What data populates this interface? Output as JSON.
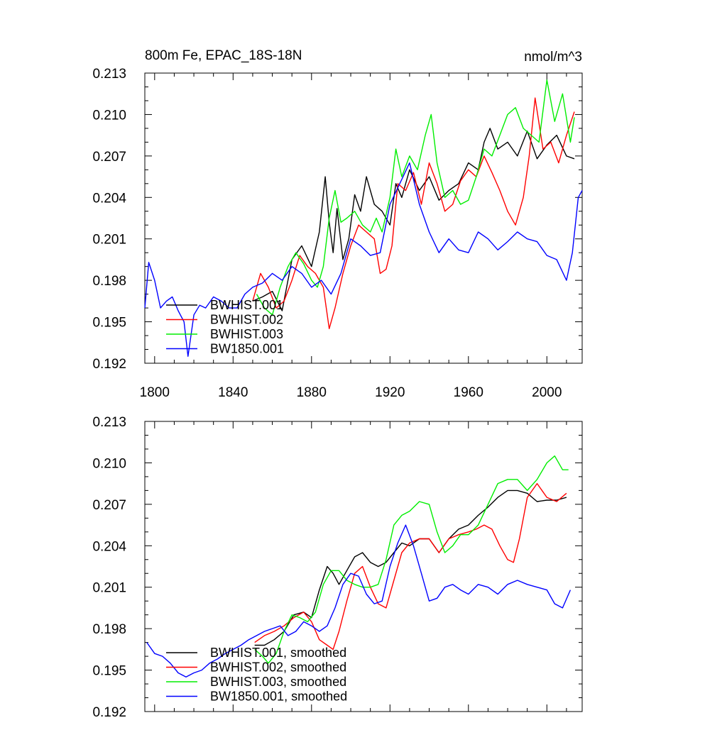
{
  "chart_data": [
    {
      "type": "line",
      "title": "800m Fe, EPAC_18S-18N",
      "units": "nmol/m^3",
      "xlim": [
        1795,
        2018
      ],
      "ylim": [
        0.192,
        0.213
      ],
      "x_ticks": [
        1800,
        1840,
        1880,
        1920,
        1960,
        2000
      ],
      "x_tick_labels": [
        "1800",
        "1840",
        "1880",
        "1920",
        "1960",
        "2000"
      ],
      "y_ticks": [
        0.192,
        0.195,
        0.198,
        0.201,
        0.204,
        0.207,
        0.21,
        0.213
      ],
      "y_tick_labels": [
        "0.192",
        "0.195",
        "0.198",
        "0.201",
        "0.204",
        "0.207",
        "0.210",
        "0.213"
      ],
      "legend_position": "bottom-left",
      "series": [
        {
          "name": "BWHIST.001",
          "color": "#000000",
          "x": [
            1850,
            1855,
            1860,
            1865,
            1870,
            1875,
            1880,
            1884,
            1887,
            1889,
            1891,
            1893,
            1896,
            1899,
            1902,
            1905,
            1908,
            1912,
            1916,
            1920,
            1923,
            1926,
            1930,
            1935,
            1940,
            1945,
            1950,
            1955,
            1960,
            1965,
            1968,
            1971,
            1975,
            1980,
            1985,
            1990,
            1995,
            2000,
            2005,
            2010,
            2014
          ],
          "values": [
            0.1965,
            0.1968,
            0.1972,
            0.1958,
            0.1995,
            0.2005,
            0.199,
            0.2015,
            0.2055,
            0.2022,
            0.2,
            0.2032,
            0.1995,
            0.201,
            0.2042,
            0.203,
            0.2055,
            0.2035,
            0.203,
            0.202,
            0.205,
            0.204,
            0.206,
            0.2045,
            0.2055,
            0.2038,
            0.2045,
            0.205,
            0.2065,
            0.206,
            0.208,
            0.209,
            0.2075,
            0.208,
            0.207,
            0.2088,
            0.2068,
            0.2078,
            0.2085,
            0.207,
            0.2068
          ]
        },
        {
          "name": "BWHIST.002",
          "color": "#ff0000",
          "x": [
            1850,
            1854,
            1858,
            1862,
            1866,
            1870,
            1874,
            1878,
            1882,
            1886,
            1889,
            1892,
            1896,
            1900,
            1904,
            1908,
            1912,
            1915,
            1918,
            1921,
            1924,
            1928,
            1932,
            1936,
            1940,
            1944,
            1948,
            1952,
            1956,
            1960,
            1964,
            1968,
            1972,
            1976,
            1980,
            1984,
            1988,
            1991,
            1994,
            1998,
            2002,
            2006,
            2010,
            2014
          ],
          "values": [
            0.1965,
            0.1985,
            0.1975,
            0.196,
            0.1965,
            0.198,
            0.1998,
            0.199,
            0.1985,
            0.1975,
            0.1945,
            0.196,
            0.1985,
            0.2005,
            0.202,
            0.2015,
            0.201,
            0.1985,
            0.1988,
            0.2005,
            0.205,
            0.2045,
            0.2058,
            0.2035,
            0.2065,
            0.205,
            0.203,
            0.2035,
            0.2052,
            0.206,
            0.2055,
            0.207,
            0.2058,
            0.2045,
            0.203,
            0.202,
            0.204,
            0.207,
            0.2112,
            0.2075,
            0.208,
            0.2065,
            0.2085,
            0.2102
          ]
        },
        {
          "name": "BWHIST.003",
          "color": "#00ee00",
          "x": [
            1852,
            1856,
            1860,
            1864,
            1868,
            1872,
            1876,
            1880,
            1883,
            1886,
            1889,
            1892,
            1895,
            1898,
            1902,
            1906,
            1910,
            1913,
            1916,
            1920,
            1923,
            1926,
            1930,
            1934,
            1938,
            1941,
            1944,
            1948,
            1952,
            1956,
            1960,
            1964,
            1968,
            1972,
            1976,
            1980,
            1984,
            1988,
            1992,
            1996,
            2000,
            2004,
            2008,
            2012,
            2014
          ],
          "values": [
            0.197,
            0.196,
            0.1955,
            0.1975,
            0.199,
            0.2,
            0.1992,
            0.198,
            0.1975,
            0.199,
            0.2025,
            0.2045,
            0.2022,
            0.2025,
            0.203,
            0.202,
            0.2015,
            0.2025,
            0.2015,
            0.204,
            0.2075,
            0.2055,
            0.207,
            0.206,
            0.2085,
            0.21,
            0.2065,
            0.204,
            0.2045,
            0.2035,
            0.2038,
            0.2055,
            0.2075,
            0.207,
            0.2085,
            0.21,
            0.2105,
            0.209,
            0.2085,
            0.208,
            0.2125,
            0.2095,
            0.2115,
            0.208,
            0.2098
          ]
        },
        {
          "name": "BW1850.001",
          "color": "#0000ff",
          "x": [
            1795,
            1797,
            1800,
            1803,
            1806,
            1809,
            1812,
            1815,
            1817,
            1820,
            1823,
            1826,
            1830,
            1834,
            1838,
            1842,
            1846,
            1850,
            1855,
            1860,
            1865,
            1870,
            1875,
            1880,
            1885,
            1890,
            1895,
            1900,
            1905,
            1910,
            1915,
            1920,
            1925,
            1930,
            1935,
            1940,
            1945,
            1950,
            1955,
            1960,
            1965,
            1970,
            1975,
            1980,
            1985,
            1990,
            1995,
            2000,
            2005,
            2010,
            2013,
            2016,
            2018
          ],
          "values": [
            0.196,
            0.1993,
            0.198,
            0.196,
            0.1965,
            0.1968,
            0.1958,
            0.195,
            0.1925,
            0.1955,
            0.1962,
            0.196,
            0.1968,
            0.1965,
            0.196,
            0.196,
            0.197,
            0.1975,
            0.1978,
            0.1985,
            0.198,
            0.199,
            0.1985,
            0.1975,
            0.198,
            0.197,
            0.1985,
            0.201,
            0.2005,
            0.1998,
            0.2,
            0.2035,
            0.205,
            0.2065,
            0.2035,
            0.2015,
            0.2,
            0.201,
            0.2002,
            0.2,
            0.2015,
            0.201,
            0.2002,
            0.2008,
            0.2015,
            0.201,
            0.2008,
            0.1998,
            0.1995,
            0.198,
            0.2,
            0.204,
            0.2045
          ]
        }
      ]
    },
    {
      "type": "line",
      "title": "",
      "xlim": [
        1795,
        2018
      ],
      "ylim": [
        0.192,
        0.213
      ],
      "y_ticks": [
        0.192,
        0.195,
        0.198,
        0.201,
        0.204,
        0.207,
        0.21,
        0.213
      ],
      "y_tick_labels": [
        "0.192",
        "0.195",
        "0.198",
        "0.201",
        "0.204",
        "0.207",
        "0.210",
        "0.213"
      ],
      "legend_position": "bottom-left",
      "series": [
        {
          "name": "BWHIST.001, smoothed",
          "color": "#000000",
          "x": [
            1851,
            1856,
            1861,
            1866,
            1871,
            1876,
            1880,
            1884,
            1888,
            1891,
            1894,
            1898,
            1902,
            1906,
            1910,
            1914,
            1918,
            1922,
            1926,
            1930,
            1935,
            1940,
            1945,
            1950,
            1955,
            1960,
            1965,
            1970,
            1975,
            1980,
            1985,
            1990,
            1995,
            2000,
            2005,
            2010
          ],
          "values": [
            0.1968,
            0.1968,
            0.1972,
            0.1978,
            0.199,
            0.1992,
            0.1988,
            0.2008,
            0.2025,
            0.202,
            0.2012,
            0.2022,
            0.2032,
            0.2035,
            0.2028,
            0.2025,
            0.2028,
            0.2035,
            0.2042,
            0.204,
            0.2045,
            0.2045,
            0.2035,
            0.2045,
            0.2052,
            0.2055,
            0.2062,
            0.2068,
            0.2075,
            0.208,
            0.208,
            0.2078,
            0.2072,
            0.2073,
            0.2073,
            0.2075
          ]
        },
        {
          "name": "BWHIST.002, smoothed",
          "color": "#ff0000",
          "x": [
            1851,
            1856,
            1861,
            1866,
            1871,
            1876,
            1880,
            1884,
            1888,
            1891,
            1894,
            1898,
            1902,
            1906,
            1910,
            1914,
            1918,
            1922,
            1926,
            1930,
            1935,
            1940,
            1945,
            1950,
            1955,
            1960,
            1964,
            1968,
            1972,
            1976,
            1980,
            1983,
            1986,
            1990,
            1995,
            2000,
            2005,
            2010
          ],
          "values": [
            0.197,
            0.1975,
            0.1978,
            0.1982,
            0.1988,
            0.1992,
            0.1985,
            0.1972,
            0.1968,
            0.1965,
            0.1978,
            0.2,
            0.202,
            0.2025,
            0.201,
            0.1998,
            0.1995,
            0.2015,
            0.2035,
            0.2042,
            0.2045,
            0.2045,
            0.2035,
            0.2045,
            0.2048,
            0.205,
            0.2052,
            0.2055,
            0.2052,
            0.204,
            0.203,
            0.2028,
            0.2045,
            0.2075,
            0.2085,
            0.2075,
            0.2072,
            0.2078
          ]
        },
        {
          "name": "BWHIST.003, smoothed",
          "color": "#00ee00",
          "x": [
            1851,
            1855,
            1858,
            1862,
            1866,
            1870,
            1874,
            1878,
            1882,
            1886,
            1890,
            1894,
            1898,
            1902,
            1906,
            1910,
            1914,
            1918,
            1922,
            1926,
            1930,
            1935,
            1940,
            1944,
            1948,
            1952,
            1956,
            1960,
            1965,
            1970,
            1975,
            1980,
            1985,
            1990,
            1995,
            2000,
            2004,
            2008,
            2011
          ],
          "values": [
            0.1965,
            0.196,
            0.1955,
            0.1962,
            0.1978,
            0.199,
            0.1988,
            0.1985,
            0.1992,
            0.2012,
            0.2022,
            0.2022,
            0.2015,
            0.2012,
            0.201,
            0.201,
            0.2012,
            0.203,
            0.2055,
            0.2062,
            0.2065,
            0.2072,
            0.207,
            0.205,
            0.2035,
            0.204,
            0.2048,
            0.2048,
            0.2055,
            0.207,
            0.2085,
            0.2088,
            0.2088,
            0.208,
            0.2088,
            0.21,
            0.2105,
            0.2095,
            0.2095
          ]
        },
        {
          "name": "BW1850.001, smoothed",
          "color": "#0000ff",
          "x": [
            1796,
            1800,
            1804,
            1808,
            1812,
            1816,
            1820,
            1824,
            1828,
            1832,
            1836,
            1840,
            1844,
            1848,
            1852,
            1856,
            1860,
            1864,
            1868,
            1872,
            1876,
            1880,
            1884,
            1888,
            1892,
            1896,
            1900,
            1904,
            1908,
            1912,
            1916,
            1920,
            1924,
            1928,
            1932,
            1936,
            1940,
            1944,
            1948,
            1952,
            1956,
            1960,
            1965,
            1970,
            1975,
            1980,
            1985,
            1990,
            1995,
            2000,
            2004,
            2008,
            2012
          ],
          "values": [
            0.197,
            0.1962,
            0.196,
            0.1955,
            0.1948,
            0.1945,
            0.1948,
            0.195,
            0.1955,
            0.1958,
            0.1962,
            0.1965,
            0.1968,
            0.1972,
            0.1975,
            0.1978,
            0.198,
            0.1982,
            0.1975,
            0.1978,
            0.1985,
            0.1982,
            0.1978,
            0.1982,
            0.1995,
            0.2012,
            0.202,
            0.2018,
            0.2005,
            0.1998,
            0.2,
            0.2025,
            0.2042,
            0.2055,
            0.204,
            0.202,
            0.2,
            0.2002,
            0.201,
            0.2012,
            0.2008,
            0.2005,
            0.2012,
            0.201,
            0.2005,
            0.2012,
            0.2015,
            0.2012,
            0.201,
            0.2008,
            0.1998,
            0.1995,
            0.2008
          ]
        }
      ]
    }
  ]
}
